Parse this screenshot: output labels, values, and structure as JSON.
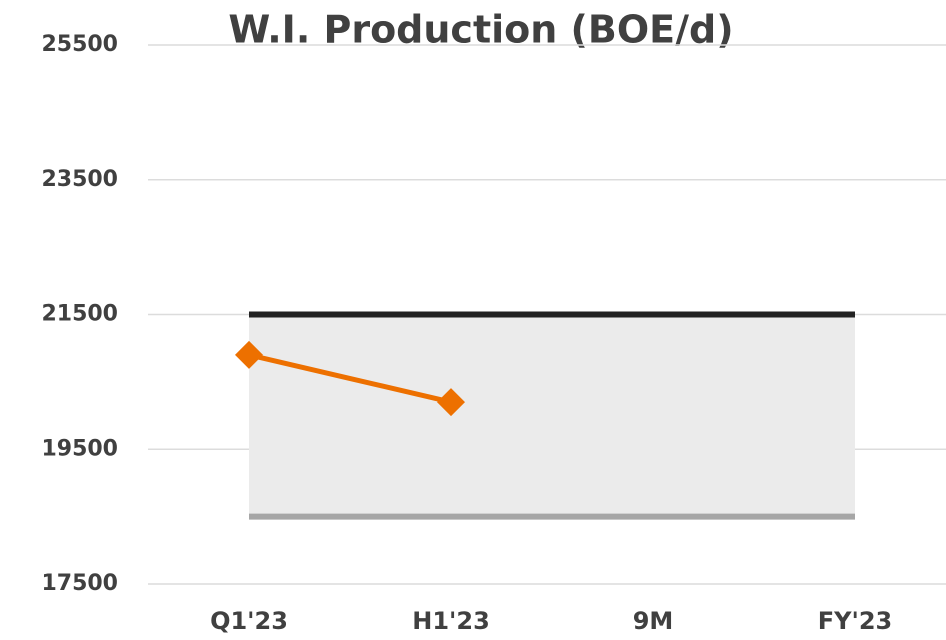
{
  "chart_data": {
    "type": "line",
    "title": "W.I. Production (BOE/d)",
    "categories": [
      "Q1'23",
      "H1'23",
      "9M",
      "FY'23"
    ],
    "series": [
      {
        "color": "#222222",
        "values": [
          21500,
          21500,
          21500,
          21500
        ]
      },
      {
        "color": "#a6a6a6",
        "values": [
          18500,
          18500,
          18500,
          18500
        ]
      },
      {
        "color": "#ed7000",
        "values": [
          20900,
          20200,
          null,
          null
        ],
        "marker": "diamond"
      }
    ],
    "band_between": [
      0,
      1
    ],
    "band_color": "#ebebeb",
    "ylim": [
      17500,
      25500
    ],
    "yticks": [
      17500,
      19500,
      21500,
      23500,
      25500
    ],
    "grid": true
  }
}
